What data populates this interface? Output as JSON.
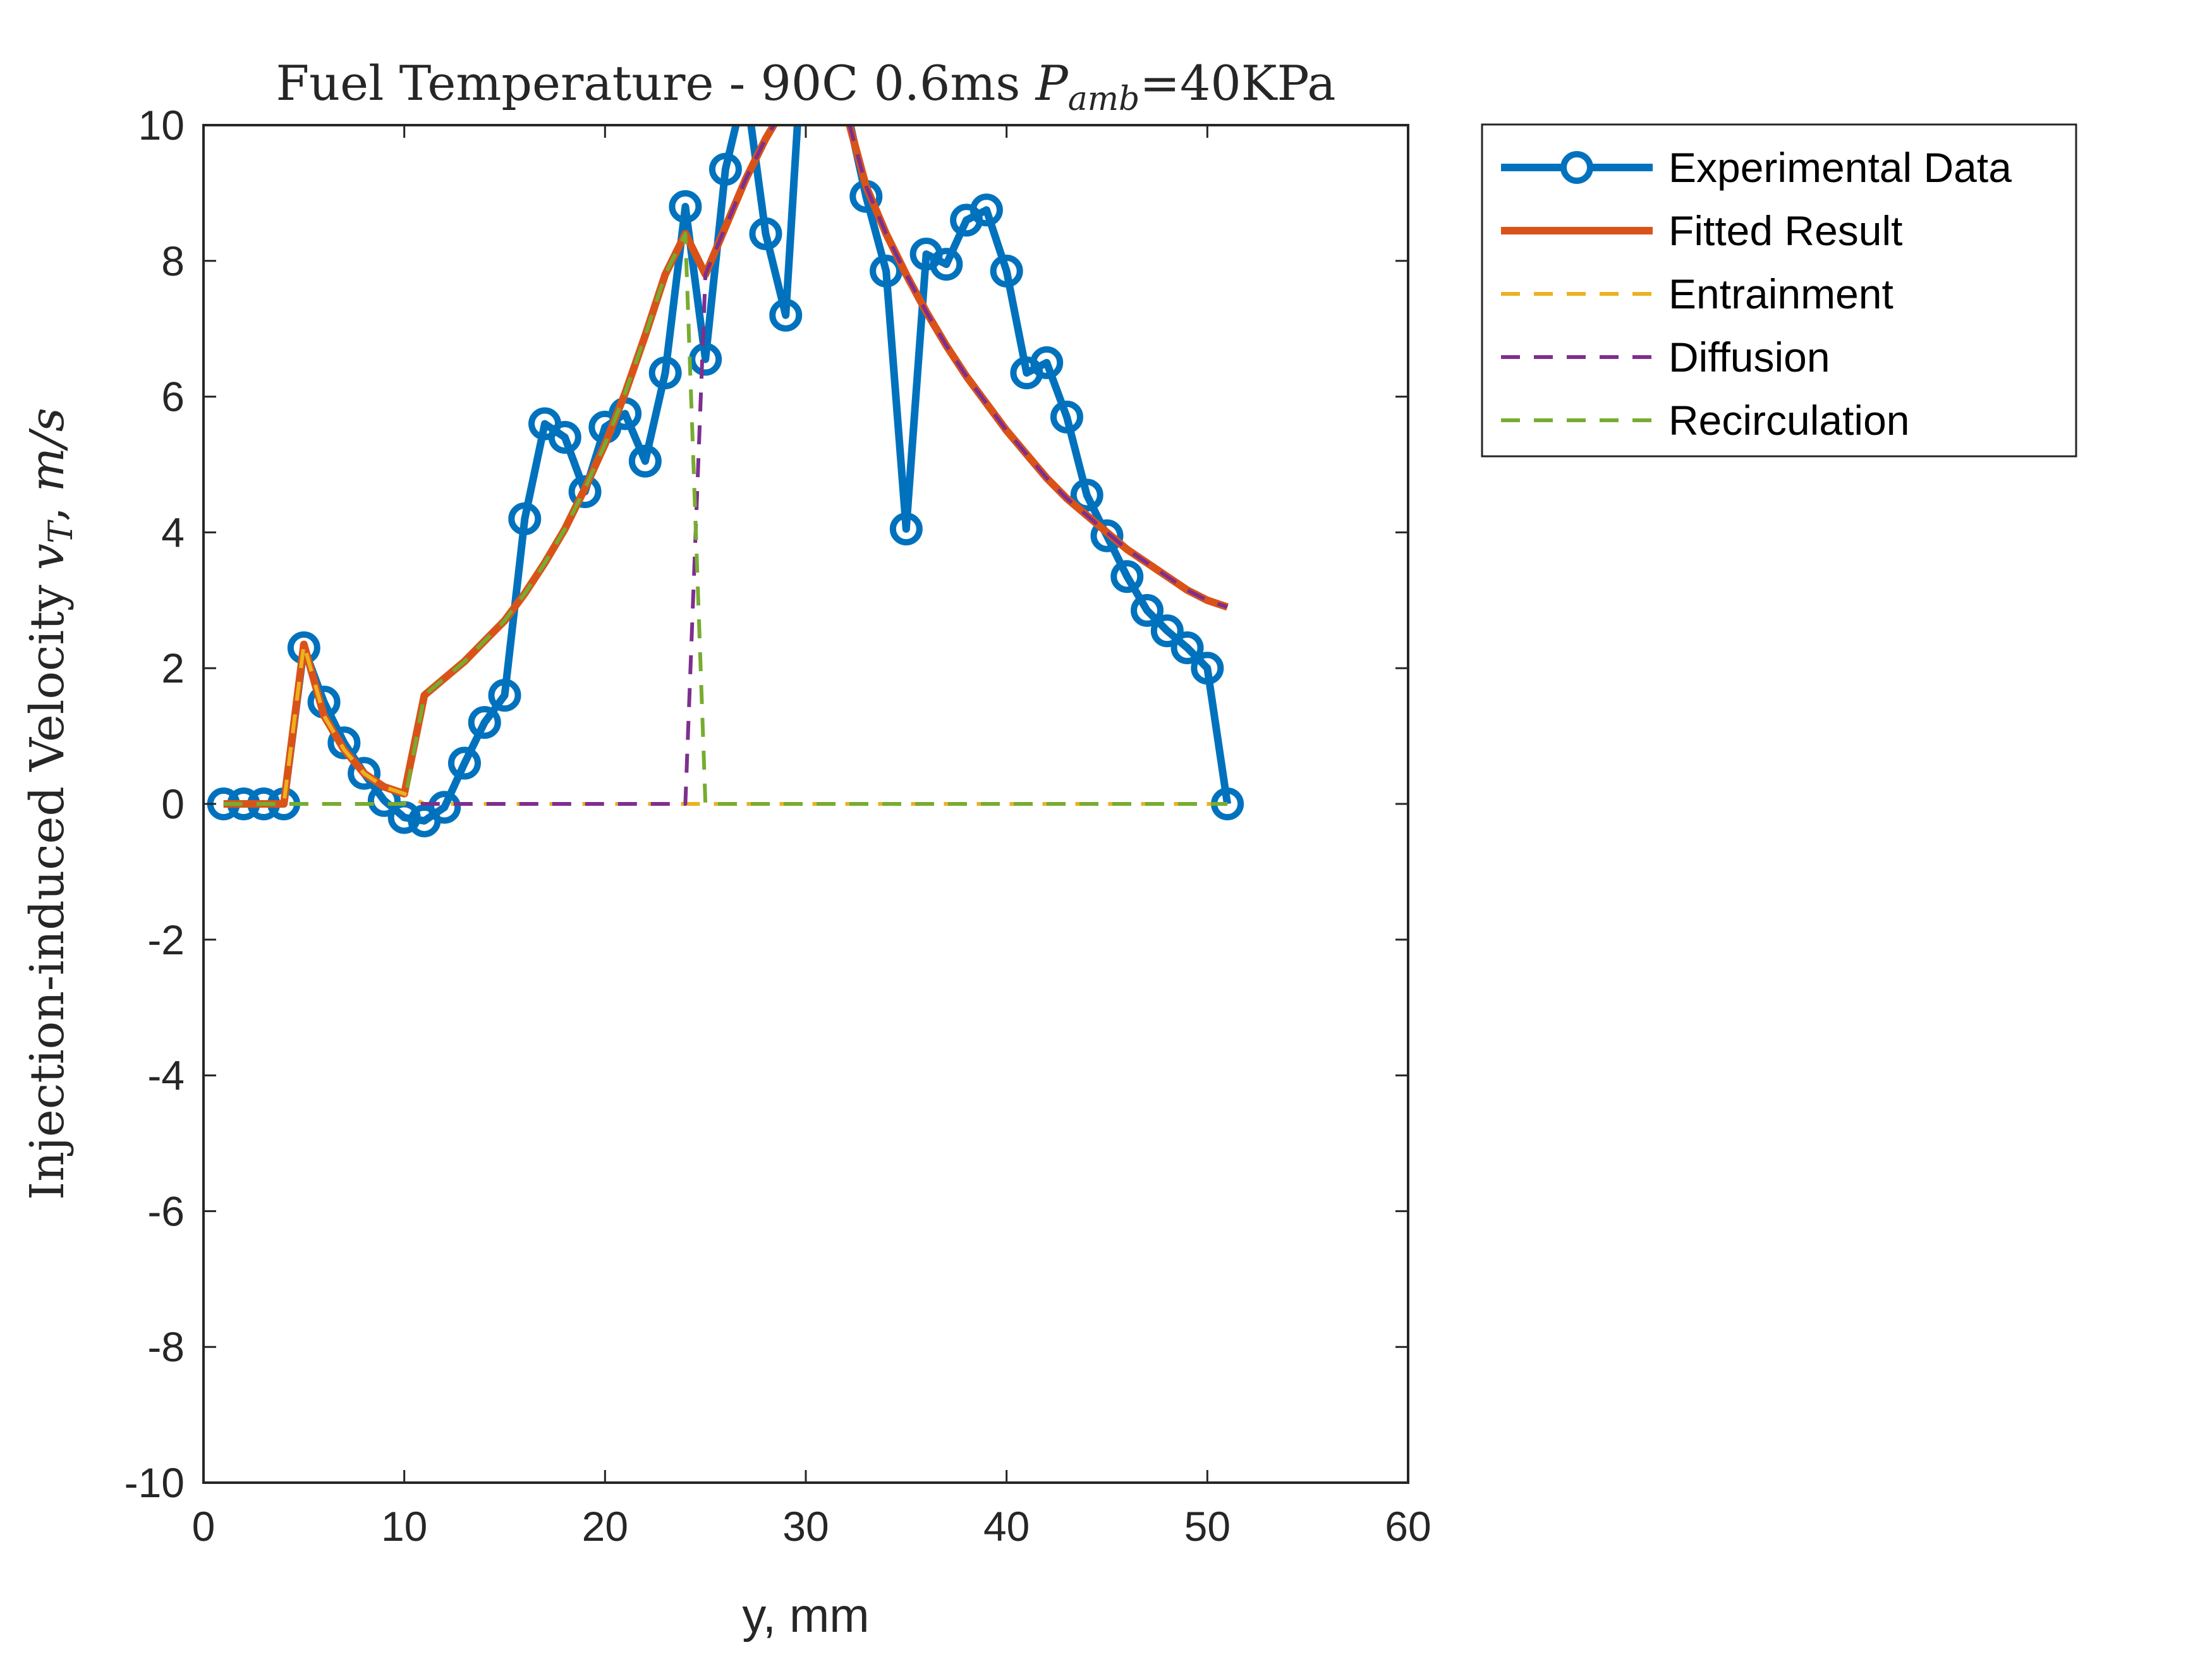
{
  "chart_data": {
    "type": "line",
    "title": {
      "prefix": "Fuel Temperature - 90C 0.6ms ",
      "var": "P",
      "sub": "amb",
      "suffix": "=40KPa"
    },
    "xlabel": "y, mm",
    "ylabel": {
      "prefix": "Injection-induced Velocity ",
      "var": "v",
      "sub": "T",
      "suffix": ", ",
      "unit": "m/s"
    },
    "xlim": [
      0,
      60
    ],
    "ylim": [
      -10,
      10
    ],
    "xticks": [
      "0",
      "10",
      "20",
      "30",
      "40",
      "50",
      "60"
    ],
    "yticks": [
      "-10",
      "-8",
      "-6",
      "-4",
      "-2",
      "0",
      "2",
      "4",
      "6",
      "8",
      "10"
    ],
    "grid": false,
    "legend_position": "outside-top-right",
    "series": [
      {
        "name": "Experimental Data",
        "color": "#0072BD",
        "style": "solid-markers",
        "x": [
          1,
          2,
          3,
          4,
          5,
          6,
          7,
          8,
          9,
          10,
          11,
          12,
          13,
          14,
          15,
          16,
          17,
          18,
          19,
          20,
          21,
          22,
          23,
          24,
          25,
          26,
          27,
          28,
          29,
          30,
          31,
          32,
          33,
          34,
          35,
          36,
          37,
          38,
          39,
          40,
          41,
          42,
          43,
          44,
          45,
          46,
          47,
          48,
          49,
          50,
          51
        ],
        "y": [
          0,
          0,
          0,
          0,
          2.3,
          1.5,
          0.9,
          0.45,
          0.05,
          -0.2,
          -0.25,
          -0.05,
          0.6,
          1.2,
          1.6,
          4.2,
          5.6,
          5.4,
          4.6,
          5.55,
          5.75,
          5.05,
          6.35,
          8.8,
          6.55,
          9.35,
          10.6,
          8.4,
          7.2,
          12.0,
          12.5,
          10.3,
          8.95,
          7.85,
          4.05,
          8.1,
          7.95,
          8.6,
          8.75,
          7.85,
          6.35,
          6.5,
          5.7,
          4.55,
          3.95,
          3.35,
          2.85,
          2.55,
          2.3,
          2.0,
          0
        ]
      },
      {
        "name": "Fitted Result",
        "color": "#D95319",
        "style": "solid",
        "x": [
          1,
          2,
          3,
          4,
          5,
          6,
          7,
          8,
          9,
          10,
          11,
          12,
          13,
          14,
          15,
          16,
          17,
          18,
          19,
          20,
          21,
          22,
          23,
          24,
          25,
          26,
          27,
          28,
          29,
          30,
          31,
          32,
          33,
          34,
          35,
          36,
          37,
          38,
          39,
          40,
          41,
          42,
          43,
          44,
          45,
          46,
          47,
          48,
          49,
          50,
          51
        ],
        "y": [
          0,
          0,
          0,
          0,
          2.35,
          1.3,
          0.8,
          0.45,
          0.25,
          0.15,
          1.6,
          1.85,
          2.1,
          2.4,
          2.7,
          3.1,
          3.55,
          4.05,
          4.65,
          5.3,
          6.05,
          6.9,
          7.8,
          8.4,
          7.8,
          8.5,
          9.2,
          9.8,
          10.3,
          10.9,
          11.3,
          10.2,
          9.1,
          8.4,
          7.8,
          7.25,
          6.75,
          6.3,
          5.9,
          5.5,
          5.15,
          4.8,
          4.5,
          4.25,
          4.0,
          3.75,
          3.55,
          3.35,
          3.15,
          3.0,
          2.9
        ]
      },
      {
        "name": "Entrainment",
        "color": "#EDB120",
        "style": "dashed",
        "x": [
          1,
          2,
          3,
          4,
          5,
          6,
          7,
          8,
          9,
          10,
          11,
          12,
          13,
          14,
          15,
          16,
          17,
          18,
          19,
          20,
          21,
          22,
          23,
          24,
          25,
          26,
          27,
          28,
          29,
          30,
          31,
          32,
          33,
          34,
          35,
          36,
          37,
          38,
          39,
          40,
          41,
          42,
          43,
          44,
          45,
          46,
          47,
          48,
          49,
          50,
          51
        ],
        "y": [
          0,
          0,
          0,
          0,
          2.35,
          1.3,
          0.8,
          0.45,
          0.25,
          0.15,
          0,
          0,
          0,
          0,
          0,
          0,
          0,
          0,
          0,
          0,
          0,
          0,
          0,
          0,
          0,
          0,
          0,
          0,
          0,
          0,
          0,
          0,
          0,
          0,
          0,
          0,
          0,
          0,
          0,
          0,
          0,
          0,
          0,
          0,
          0,
          0,
          0,
          0,
          0,
          0,
          0
        ]
      },
      {
        "name": "Diffusion",
        "color": "#7E2F8E",
        "style": "dashed",
        "x": [
          1,
          2,
          3,
          4,
          5,
          6,
          7,
          8,
          9,
          10,
          11,
          12,
          13,
          14,
          15,
          16,
          17,
          18,
          19,
          20,
          21,
          22,
          23,
          24,
          25,
          26,
          27,
          28,
          29,
          30,
          31,
          32,
          33,
          34,
          35,
          36,
          37,
          38,
          39,
          40,
          41,
          42,
          43,
          44,
          45,
          46,
          47,
          48,
          49,
          50,
          51
        ],
        "y": [
          0,
          0,
          0,
          0,
          0,
          0,
          0,
          0,
          0,
          0,
          0,
          0,
          0,
          0,
          0,
          0,
          0,
          0,
          0,
          0,
          0,
          0,
          0,
          0,
          7.8,
          8.5,
          9.2,
          9.8,
          10.3,
          10.9,
          11.3,
          10.2,
          9.1,
          8.4,
          7.8,
          7.25,
          6.75,
          6.3,
          5.9,
          5.5,
          5.15,
          4.8,
          4.5,
          4.25,
          4.0,
          3.75,
          3.55,
          3.35,
          3.15,
          3.0,
          2.9
        ]
      },
      {
        "name": "Recirculation",
        "color": "#77AC30",
        "style": "dashed",
        "x": [
          1,
          2,
          3,
          4,
          5,
          6,
          7,
          8,
          9,
          10,
          11,
          12,
          13,
          14,
          15,
          16,
          17,
          18,
          19,
          20,
          21,
          22,
          23,
          24,
          25,
          26,
          27,
          28,
          29,
          30,
          31,
          32,
          33,
          34,
          35,
          36,
          37,
          38,
          39,
          40,
          41,
          42,
          43,
          44,
          45,
          46,
          47,
          48,
          49,
          50,
          51
        ],
        "y": [
          0,
          0,
          0,
          0,
          0,
          0,
          0,
          0,
          0,
          0,
          1.6,
          1.85,
          2.1,
          2.4,
          2.7,
          3.1,
          3.55,
          4.05,
          4.65,
          5.3,
          6.05,
          6.9,
          7.8,
          8.4,
          0,
          0,
          0,
          0,
          0,
          0,
          0,
          0,
          0,
          0,
          0,
          0,
          0,
          0,
          0,
          0,
          0,
          0,
          0,
          0,
          0,
          0,
          0,
          0,
          0,
          0,
          0
        ]
      }
    ]
  }
}
